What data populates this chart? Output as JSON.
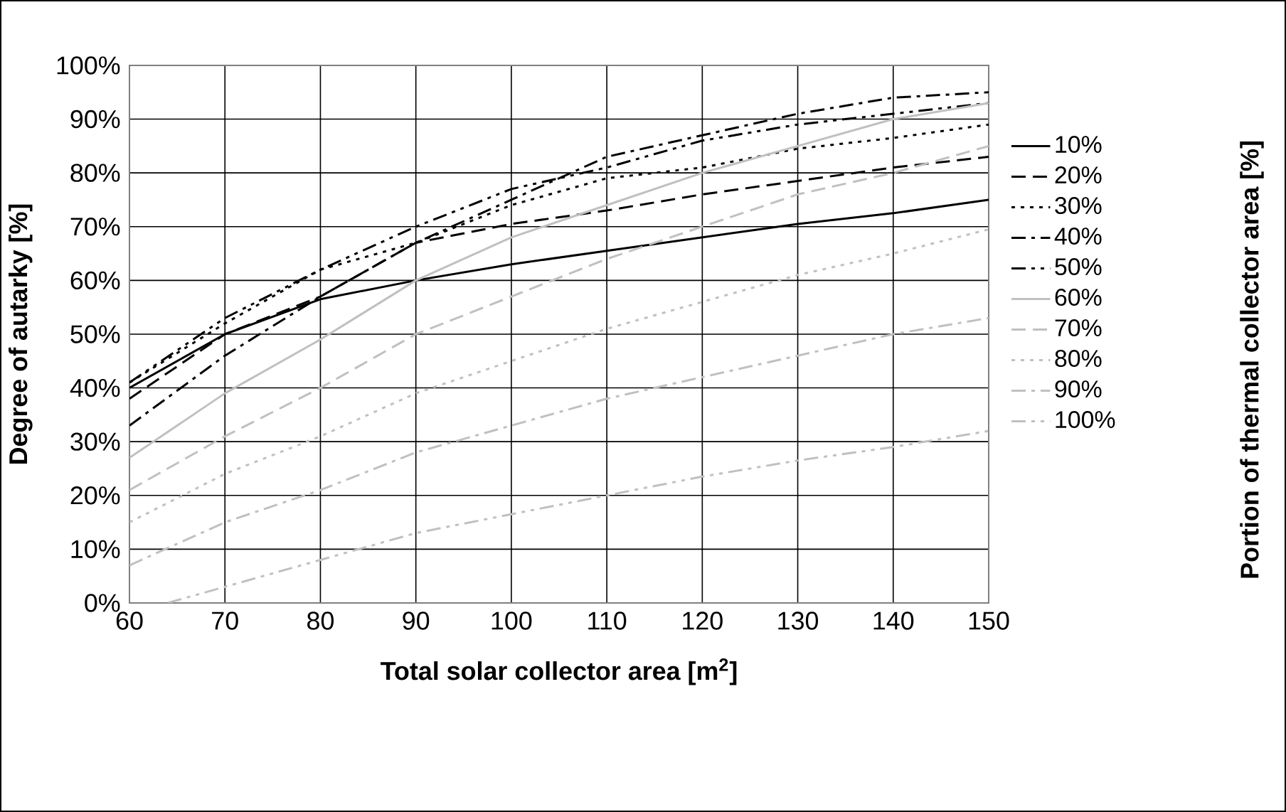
{
  "chart_data": {
    "type": "line",
    "xlabel": "Total solar collector area [m$^{2}$]",
    "ylabel": "Degree of autarky [%]",
    "legend_title": "Portion of thermal collector area [%]",
    "x": [
      60,
      70,
      80,
      90,
      100,
      110,
      120,
      130,
      140,
      150
    ],
    "series": [
      {
        "name": "10%",
        "color": "#000000",
        "line_style": "solid",
        "values": [
          40,
          50,
          56.5,
          60,
          63,
          65.5,
          68,
          70.5,
          72.5,
          75
        ]
      },
      {
        "name": "20%",
        "color": "#000000",
        "line_style": "dashed",
        "values": [
          38,
          50,
          57,
          67,
          70.5,
          73,
          76,
          78.5,
          81,
          83
        ]
      },
      {
        "name": "30%",
        "color": "#000000",
        "line_style": "dotted",
        "values": [
          41,
          52,
          62,
          67,
          74,
          79,
          81,
          84.5,
          86.5,
          89
        ]
      },
      {
        "name": "40%",
        "color": "#000000",
        "line_style": "dashdot",
        "values": [
          33,
          46,
          57,
          67,
          75,
          83,
          87,
          91,
          94,
          95
        ]
      },
      {
        "name": "50%",
        "color": "#000000",
        "line_style": "dashdotdot",
        "values": [
          41,
          53,
          62,
          70,
          77,
          81,
          86,
          89,
          91,
          93
        ]
      },
      {
        "name": "60%",
        "color": "#c0c0c0",
        "line_style": "solid",
        "values": [
          27,
          39,
          49,
          60,
          68,
          74,
          80,
          85,
          90,
          93
        ]
      },
      {
        "name": "70%",
        "color": "#c0c0c0",
        "line_style": "dashed",
        "values": [
          21,
          31,
          40,
          50,
          57,
          64,
          70,
          76,
          80,
          85
        ]
      },
      {
        "name": "80%",
        "color": "#c0c0c0",
        "line_style": "dotted",
        "values": [
          15,
          24,
          31,
          39,
          45,
          51,
          56,
          61,
          65,
          69.5
        ]
      },
      {
        "name": "90%",
        "color": "#c0c0c0",
        "line_style": "dashdot",
        "values": [
          7,
          15,
          21,
          28,
          33,
          38,
          42,
          46,
          50,
          53
        ]
      },
      {
        "name": "100%",
        "color": "#c0c0c0",
        "line_style": "dashdotdot",
        "x": [
          64,
          70,
          80,
          90,
          100,
          110,
          120,
          130,
          140,
          150
        ],
        "values": [
          0,
          3,
          8,
          13,
          16.5,
          20,
          23.5,
          26.5,
          29,
          32
        ]
      }
    ],
    "xlim": [
      60,
      150
    ],
    "xticks": [
      60,
      70,
      80,
      90,
      100,
      110,
      120,
      130,
      140,
      150
    ],
    "ylim": [
      0,
      100
    ],
    "yticks": [
      {
        "value": 0,
        "label": "0%"
      },
      {
        "value": 10,
        "label": "10%"
      },
      {
        "value": 20,
        "label": "20%"
      },
      {
        "value": 30,
        "label": "30%"
      },
      {
        "value": 40,
        "label": "40%"
      },
      {
        "value": 50,
        "label": "50%"
      },
      {
        "value": 60,
        "label": "60%"
      },
      {
        "value": 70,
        "label": "70%"
      },
      {
        "value": 80,
        "label": "80%"
      },
      {
        "value": 90,
        "label": "90%"
      },
      {
        "value": 100,
        "label": "100%"
      }
    ],
    "grid": true,
    "legend": "right"
  }
}
